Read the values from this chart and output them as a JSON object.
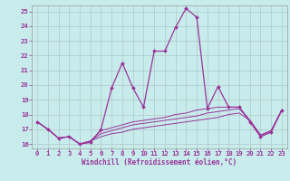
{
  "xlabel": "Windchill (Refroidissement éolien,°C)",
  "xlim": [
    -0.5,
    23.5
  ],
  "ylim": [
    15.7,
    25.4
  ],
  "xticks": [
    0,
    1,
    2,
    3,
    4,
    5,
    6,
    7,
    8,
    9,
    10,
    11,
    12,
    13,
    14,
    15,
    16,
    17,
    18,
    19,
    20,
    21,
    22,
    23
  ],
  "yticks": [
    16,
    17,
    18,
    19,
    20,
    21,
    22,
    23,
    24,
    25
  ],
  "background_color": "#c8ecec",
  "grid_color": "#b0c8c8",
  "line_color": "#993399",
  "hours": [
    0,
    1,
    2,
    3,
    4,
    5,
    6,
    7,
    8,
    9,
    10,
    11,
    12,
    13,
    14,
    15,
    16,
    17,
    18,
    19,
    20,
    21,
    22,
    23
  ],
  "temp": [
    17.5,
    17.0,
    16.4,
    16.5,
    16.0,
    16.1,
    17.0,
    19.8,
    21.5,
    19.8,
    18.5,
    22.3,
    22.3,
    23.9,
    25.2,
    24.6,
    18.4,
    19.9,
    18.5,
    18.5,
    17.5,
    16.5,
    16.8,
    18.3
  ],
  "windchill1": [
    17.5,
    17.0,
    16.4,
    16.5,
    16.0,
    16.2,
    16.9,
    17.1,
    17.3,
    17.5,
    17.6,
    17.7,
    17.8,
    18.0,
    18.1,
    18.3,
    18.4,
    18.5,
    18.5,
    18.5,
    17.6,
    16.6,
    16.9,
    18.3
  ],
  "windchill2": [
    17.5,
    17.0,
    16.4,
    16.5,
    16.0,
    16.2,
    16.7,
    16.9,
    17.1,
    17.3,
    17.4,
    17.5,
    17.6,
    17.7,
    17.8,
    17.9,
    18.1,
    18.2,
    18.3,
    18.4,
    17.6,
    16.6,
    16.9,
    18.3
  ],
  "windchill3": [
    17.5,
    17.0,
    16.4,
    16.5,
    16.0,
    16.2,
    16.5,
    16.7,
    16.8,
    17.0,
    17.1,
    17.2,
    17.3,
    17.4,
    17.5,
    17.6,
    17.7,
    17.8,
    18.0,
    18.1,
    17.6,
    16.6,
    16.9,
    18.3
  ]
}
